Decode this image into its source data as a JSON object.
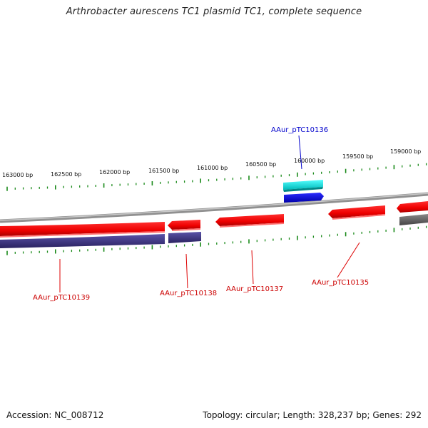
{
  "title": "Arthrobacter aurescens TC1 plasmid TC1, complete sequence",
  "ruler": {
    "labels": [
      "163000 bp",
      "162500 bp",
      "162000 bp",
      "161500 bp",
      "161000 bp",
      "160500 bp",
      "160000 bp",
      "159500 bp",
      "159000 bp"
    ]
  },
  "genes": [
    {
      "id": "AAur_pTC10139",
      "color": "#cc0000"
    },
    {
      "id": "AAur_pTC10138",
      "color": "#cc0000"
    },
    {
      "id": "AAur_pTC10137",
      "color": "#cc0000"
    },
    {
      "id": "AAur_pTC10136",
      "color": "#0000cc"
    },
    {
      "id": "AAur_pTC10135",
      "color": "#cc0000"
    }
  ],
  "colors": {
    "forward_cds": "#ff0000",
    "reverse_cds": "#ff0000",
    "rna": "#00e5e5",
    "blue_feature": "#0000ee",
    "purple_feature": "#3d3580",
    "gray_feature": "#666666",
    "tick": "#1a8a1a",
    "backbone": "#8a8a8a"
  },
  "footer": {
    "accession": "Accession: NC_008712",
    "summary": "Topology: circular; Length: 328,237 bp; Genes: 292"
  }
}
